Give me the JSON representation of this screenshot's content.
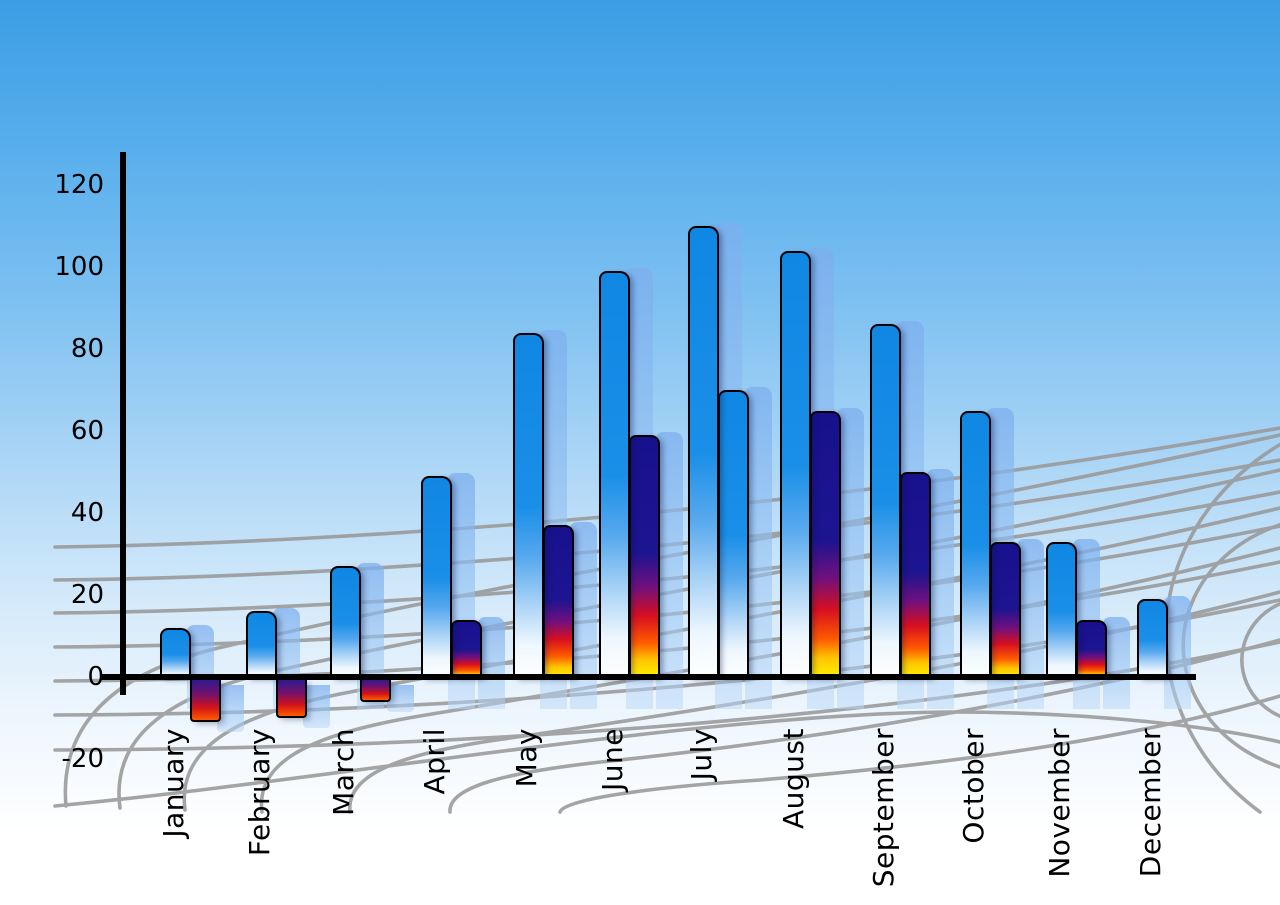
{
  "chart_data": {
    "type": "bar",
    "title": "",
    "xlabel": "",
    "ylabel": "",
    "categories": [
      "January",
      "February",
      "March",
      "April",
      "May",
      "June",
      "July",
      "August",
      "September",
      "October",
      "November",
      "December"
    ],
    "series": [
      {
        "name": "series_1_blue",
        "values": [
          12,
          16,
          27,
          49,
          84,
          99,
          110,
          104,
          86,
          65,
          33,
          19
        ]
      },
      {
        "name": "series_2_multicolor",
        "values": [
          -10,
          -9,
          -5,
          14,
          37,
          59,
          70,
          65,
          50,
          33,
          14,
          null
        ]
      }
    ],
    "ylim": [
      -20,
      120
    ],
    "yticks": [
      120,
      100,
      80,
      60,
      40,
      20,
      0,
      -20
    ],
    "legend": "none",
    "grid": "decorative gray perspective floor mesh",
    "style_notes": {
      "series_1_fill": "blue gradient fading to white at bottom",
      "series_2_fill": "navy-red-yellow gradient; negative bars navy-red-orange",
      "series_2_july_fill": "blue gradient (July second bar drawn like series 1 in source)",
      "echo_bars": "each bar has a translucent light-blue copy offset to the right (3D echo)",
      "x_labels_orientation": "rotated 90deg, reading bottom to top"
    }
  },
  "colors": {
    "sky_top": "#3b9de4",
    "sky_bottom": "#ffffff",
    "bar_blue_top": "#0f87e3",
    "bar_multi_navy": "#18118e",
    "bar_multi_red": "#d80f20",
    "bar_multi_yellow": "#fff500",
    "echo_blue": "#96c3f2",
    "grid_line": "#999999",
    "axis": "#000000",
    "label_text": "#000000"
  }
}
